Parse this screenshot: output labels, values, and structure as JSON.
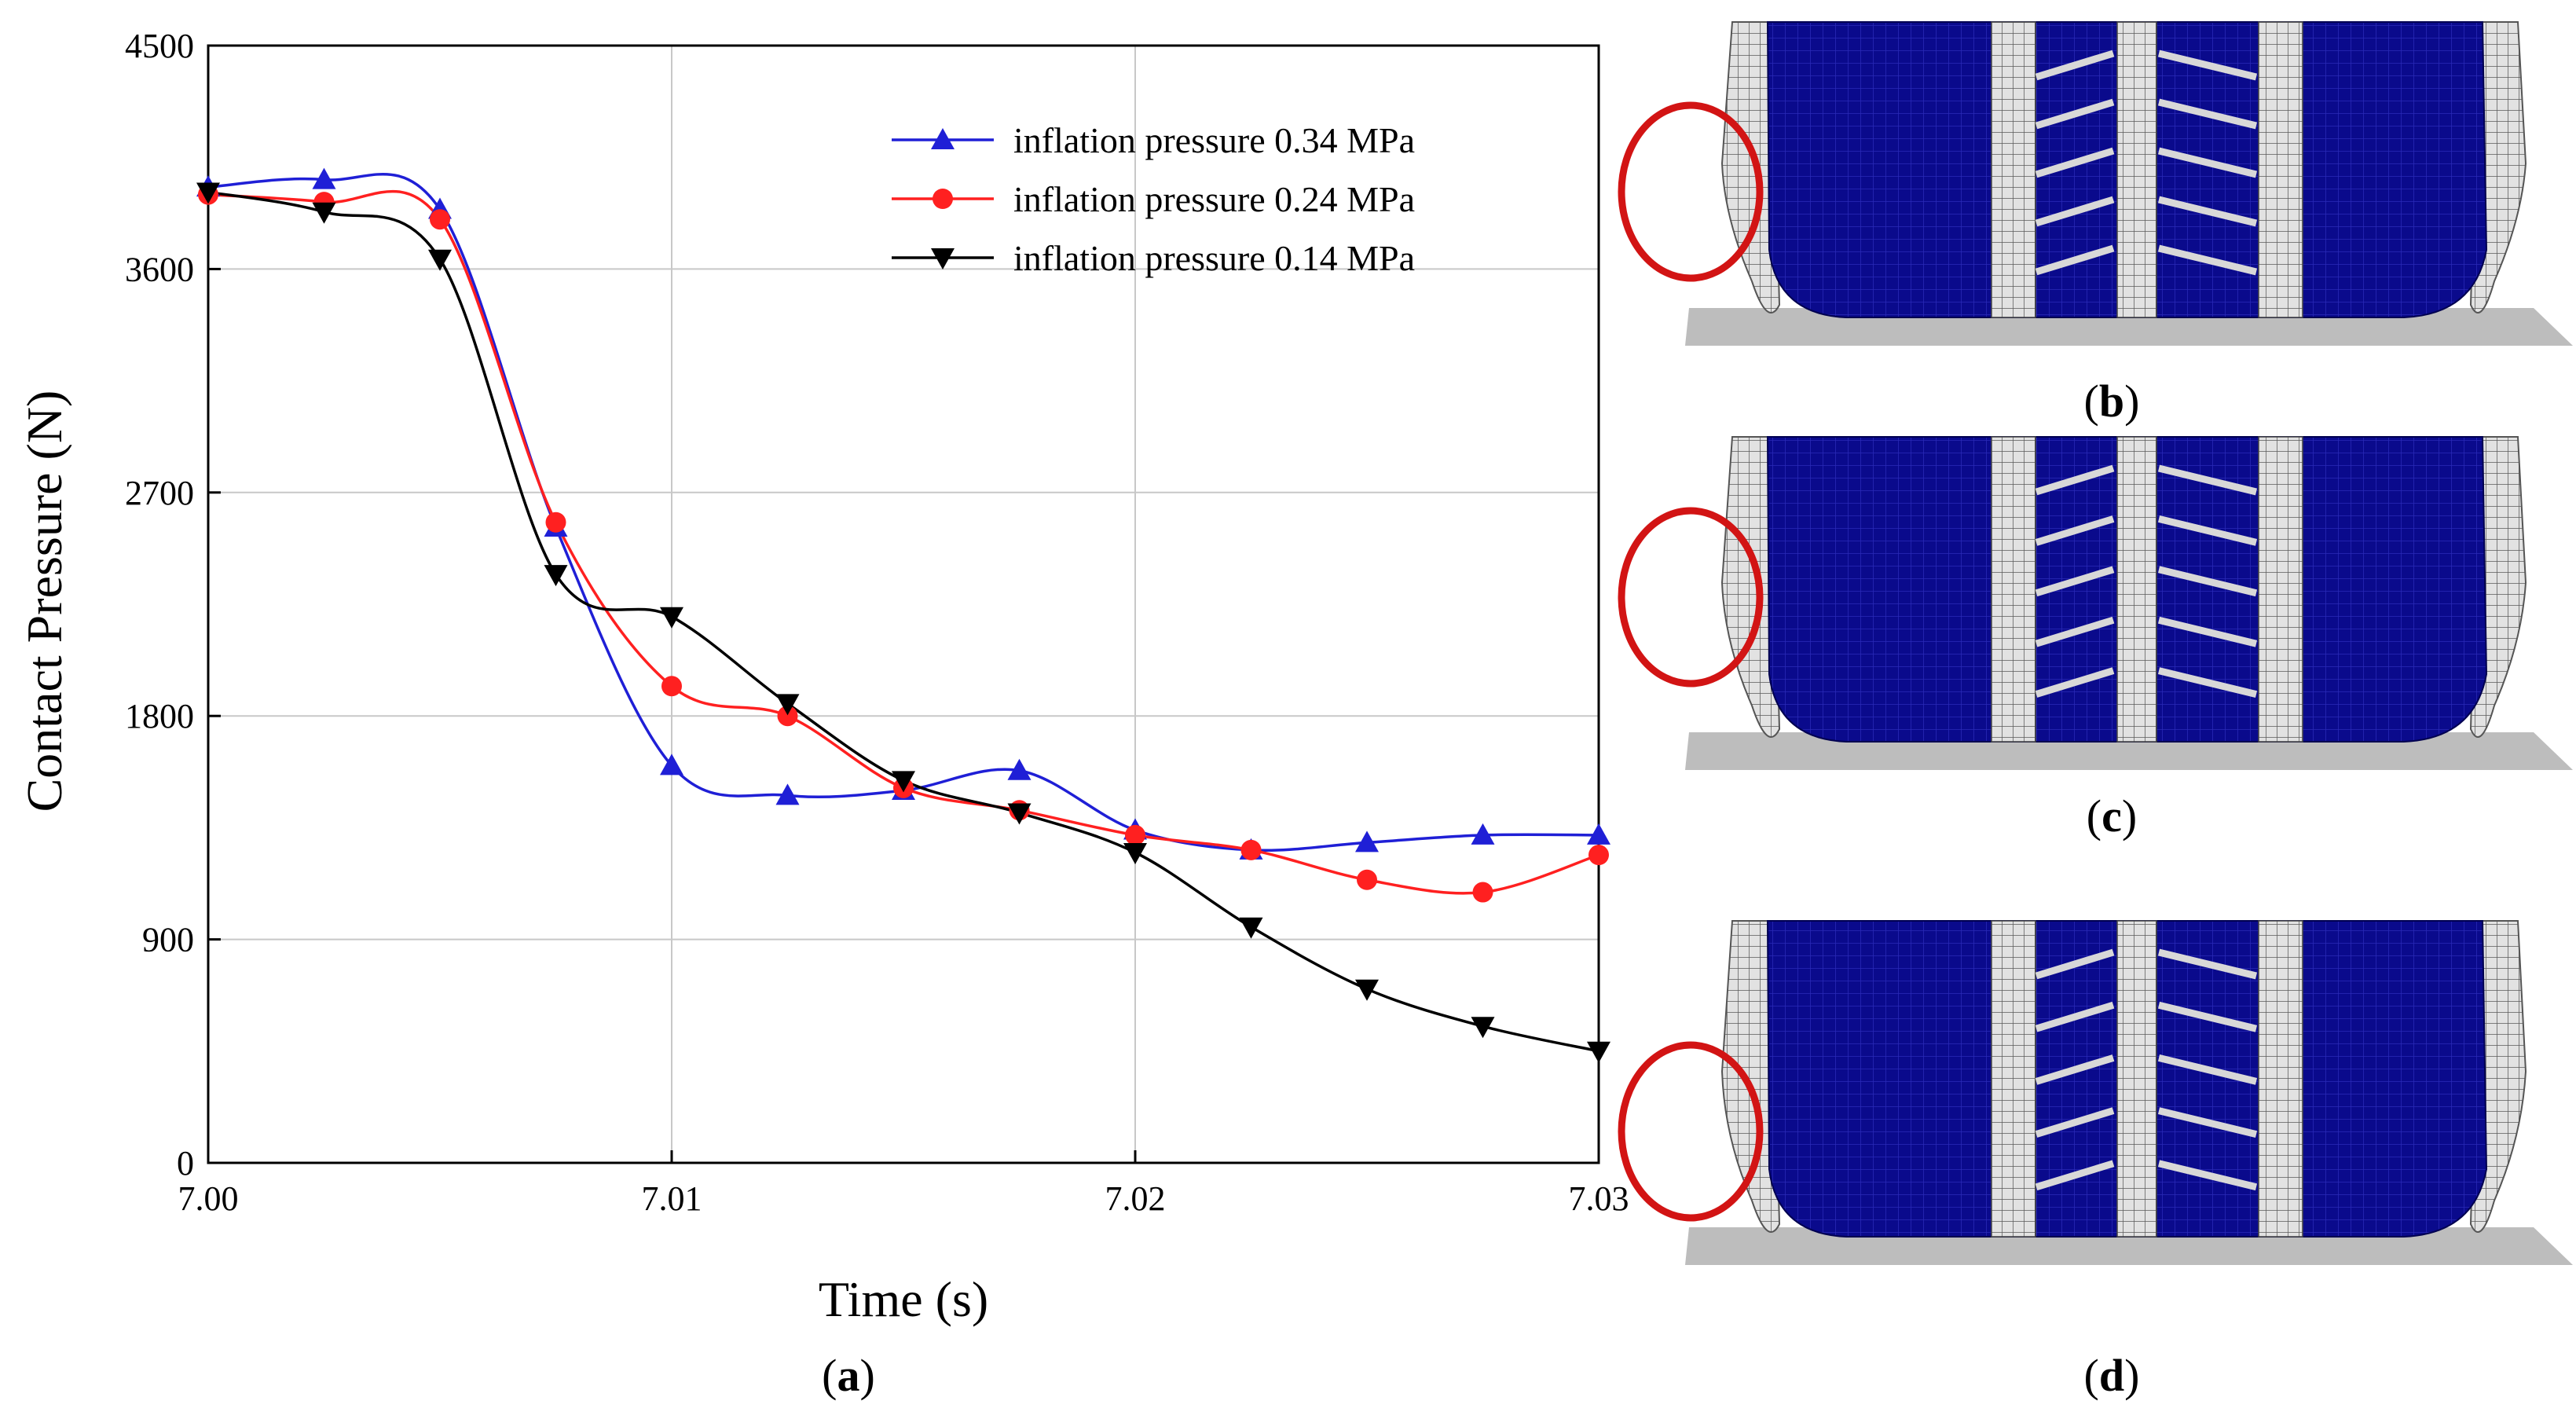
{
  "chart_data": {
    "type": "line",
    "xlabel": "Time (s)",
    "ylabel": "Contact Pressure (N)",
    "xlim": [
      7.0,
      7.03
    ],
    "ylim": [
      0,
      4500
    ],
    "xticks": [
      "7.00",
      "7.01",
      "7.02",
      "7.03"
    ],
    "xtick_values": [
      7.0,
      7.01,
      7.02,
      7.03
    ],
    "yticks": [
      "0",
      "900",
      "1800",
      "2700",
      "3600",
      "4500"
    ],
    "ytick_values": [
      0,
      900,
      1800,
      2700,
      3600,
      4500
    ],
    "grid": true,
    "legend_position": "top-right",
    "series": [
      {
        "name": "inflation pressure 0.34 MPa",
        "color": "#1f1fd6",
        "marker": "triangle-up",
        "x": [
          7.0,
          7.0025,
          7.005,
          7.0075,
          7.01,
          7.0125,
          7.015,
          7.0175,
          7.02,
          7.0225,
          7.025,
          7.0275,
          7.03
        ],
        "values": [
          3930,
          3960,
          3840,
          2560,
          1600,
          1480,
          1500,
          1580,
          1340,
          1260,
          1290,
          1320,
          1320
        ]
      },
      {
        "name": "inflation pressure 0.24 MPa",
        "color": "#ff2020",
        "marker": "circle",
        "x": [
          7.0,
          7.0025,
          7.005,
          7.0075,
          7.01,
          7.0125,
          7.015,
          7.0175,
          7.02,
          7.0225,
          7.025,
          7.0275,
          7.03
        ],
        "values": [
          3900,
          3870,
          3800,
          2580,
          1920,
          1800,
          1510,
          1420,
          1320,
          1260,
          1140,
          1090,
          1240
        ]
      },
      {
        "name": "inflation pressure 0.14 MPa",
        "color": "#000000",
        "marker": "triangle-down",
        "x": [
          7.0,
          7.0025,
          7.005,
          7.0075,
          7.01,
          7.0125,
          7.015,
          7.0175,
          7.02,
          7.0225,
          7.025,
          7.0275,
          7.03
        ],
        "values": [
          3910,
          3830,
          3640,
          2370,
          2200,
          1850,
          1540,
          1410,
          1250,
          950,
          700,
          550,
          450
        ]
      }
    ]
  },
  "panels": {
    "a": {
      "open": "(",
      "letter": "a",
      "close": ")"
    },
    "b": {
      "open": "(",
      "letter": "b",
      "close": ")"
    },
    "c": {
      "open": "(",
      "letter": "c",
      "close": ")"
    },
    "d": {
      "open": "(",
      "letter": "d",
      "close": ")"
    }
  },
  "colors": {
    "tire_tread": "#0a0a8c",
    "sidewall_mesh": "#c8c8c8",
    "ground": "#bdbdbd",
    "highlight_circle": "#d21414"
  }
}
